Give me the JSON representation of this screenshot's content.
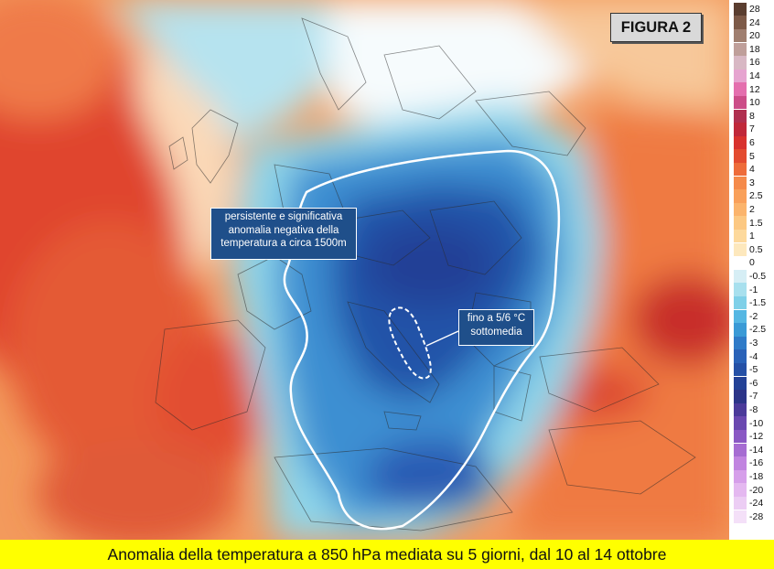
{
  "figure_label": "FIGURA 2",
  "caption": "Anomalia della temperatura a 850 hPa mediata su 5 giorni, dal 10 al 14 ottobre",
  "annotations": {
    "anomaly_note": "persistente e significativa anomalia negativa della temperatura a circa 1500m",
    "max_note": "fino a 5/6 °C sottomedia"
  },
  "colorbar": {
    "labels": [
      "28",
      "24",
      "20",
      "18",
      "16",
      "14",
      "12",
      "10",
      "8",
      "7",
      "6",
      "5",
      "4",
      "3",
      "2.5",
      "2",
      "1.5",
      "1",
      "0.5",
      "0",
      "-0.5",
      "-1",
      "-1.5",
      "-2",
      "-2.5",
      "-3",
      "-4",
      "-5",
      "-6",
      "-7",
      "-8",
      "-10",
      "-12",
      "-14",
      "-16",
      "-18",
      "-20",
      "-24",
      "-28"
    ],
    "colors": [
      "#5a3e30",
      "#7d5a48",
      "#a07f70",
      "#bf9f9a",
      "#d8b8c4",
      "#e6a4d0",
      "#e46fae",
      "#cc4d88",
      "#b03050",
      "#c0283a",
      "#d8322e",
      "#e34b30",
      "#ee6c3a",
      "#f58a4a",
      "#f9a05a",
      "#fbb46c",
      "#fcc882",
      "#fdd99c",
      "#fde8bd",
      "#ffffff",
      "#d6eef5",
      "#a8e0ee",
      "#7fd0e8",
      "#55b7e3",
      "#3a9ad6",
      "#2f7bc8",
      "#2a62b8",
      "#2550a6",
      "#234196",
      "#2c3488",
      "#4b3a9a",
      "#6a48b0",
      "#8a58c4",
      "#a66cd2",
      "#c184e0",
      "#d69fea",
      "#e4b8f0",
      "#eccdf4",
      "#f4e0f8"
    ]
  }
}
